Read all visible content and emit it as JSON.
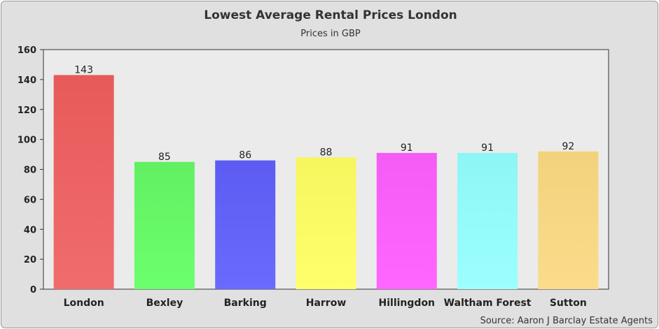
{
  "chart_data": {
    "type": "bar",
    "title": "Lowest Average Rental Prices London",
    "subtitle": "Prices in GBP",
    "categories": [
      "London",
      "Bexley",
      "Barking",
      "Harrow",
      "Hillingdon",
      "Waltham Forest",
      "Sutton"
    ],
    "values": [
      143,
      85,
      86,
      88,
      91,
      91,
      92
    ],
    "ylim": [
      0,
      160
    ],
    "yticks": [
      0,
      20,
      40,
      60,
      80,
      100,
      120,
      140,
      160
    ],
    "grid": false,
    "legend": "none",
    "colors": [
      [
        "#f06c6c",
        "#e85a5a"
      ],
      [
        "#6cff6c",
        "#62f062"
      ],
      [
        "#6a6aff",
        "#5c5cf2"
      ],
      [
        "#ffff6c",
        "#f6f65e"
      ],
      [
        "#ff66ff",
        "#f45cf4"
      ],
      [
        "#9cffff",
        "#8ef5f5"
      ],
      [
        "#fadc8a",
        "#f3d27c"
      ]
    ],
    "source": "Source: Aaron J Barclay Estate Agents"
  }
}
